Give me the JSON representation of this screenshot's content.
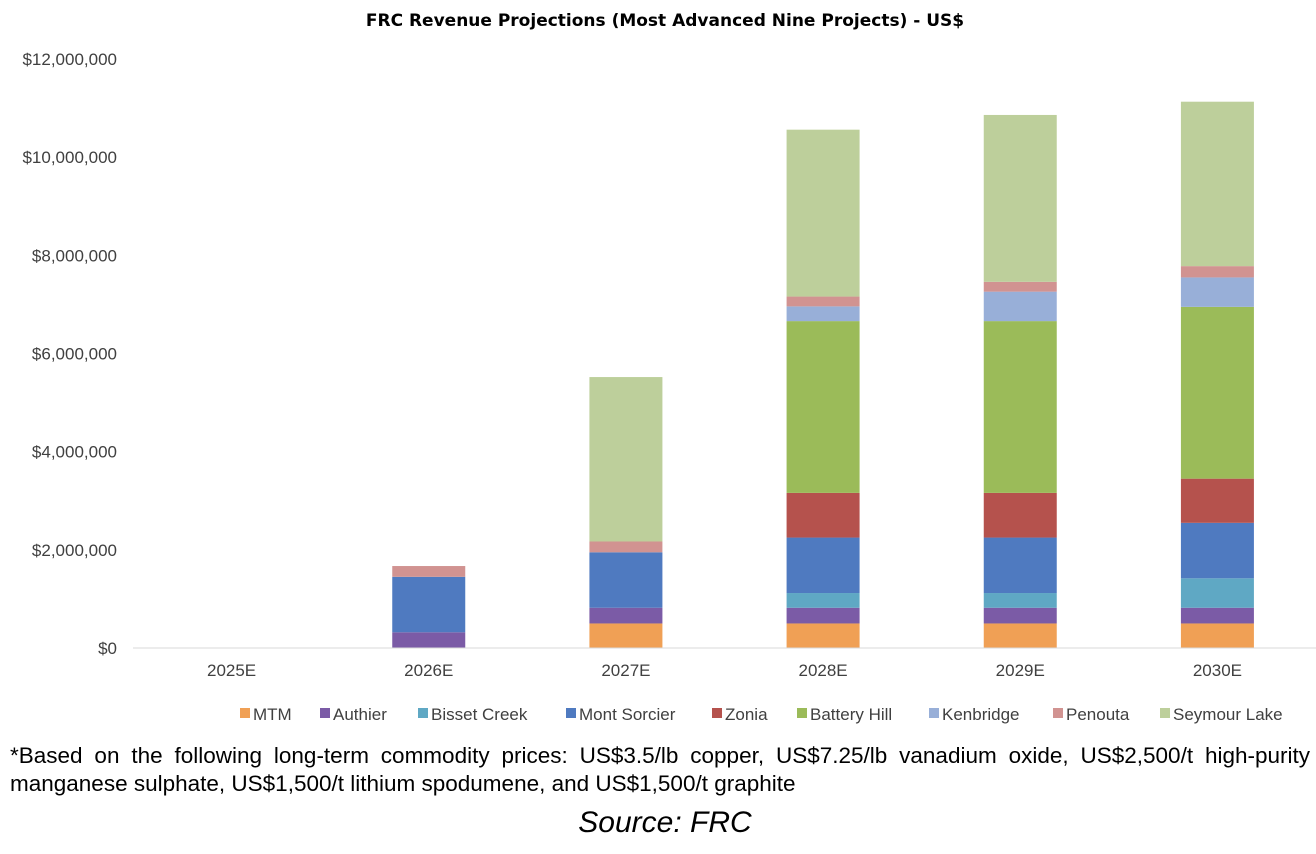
{
  "chart_data": {
    "type": "bar",
    "stacked": true,
    "title": "FRC Revenue Projections (Most Advanced Nine Projects) - US$",
    "xlabel": "",
    "ylabel": "",
    "categories": [
      "2025E",
      "2026E",
      "2027E",
      "2028E",
      "2029E",
      "2030E"
    ],
    "ylim": [
      0,
      12000000
    ],
    "y_ticks": [
      0,
      2000000,
      4000000,
      6000000,
      8000000,
      10000000,
      12000000
    ],
    "y_tick_labels": [
      "$0",
      "$2,000,000",
      "$4,000,000",
      "$6,000,000",
      "$8,000,000",
      "$10,000,000",
      "$12,000,000"
    ],
    "grid": false,
    "legend_position": "bottom",
    "series": [
      {
        "name": "MTM",
        "color": "#F0A055",
        "values": [
          0,
          0,
          500000,
          500000,
          500000,
          500000
        ]
      },
      {
        "name": "Authier",
        "color": "#7B5BA6",
        "values": [
          0,
          320000,
          320000,
          320000,
          320000,
          320000
        ]
      },
      {
        "name": "Bisset Creek",
        "color": "#5FA8C4",
        "values": [
          0,
          0,
          0,
          300000,
          300000,
          600000
        ]
      },
      {
        "name": "Mont Sorcier",
        "color": "#4F7AC0",
        "values": [
          0,
          1130000,
          1130000,
          1130000,
          1130000,
          1130000
        ]
      },
      {
        "name": "Zonia",
        "color": "#B5524D",
        "values": [
          0,
          0,
          0,
          910000,
          910000,
          900000
        ]
      },
      {
        "name": "Battery Hill",
        "color": "#9BBB59",
        "values": [
          0,
          0,
          0,
          3500000,
          3500000,
          3500000
        ]
      },
      {
        "name": "Kenbridge",
        "color": "#98AFD8",
        "values": [
          0,
          0,
          0,
          300000,
          600000,
          600000
        ]
      },
      {
        "name": "Penouta",
        "color": "#D19391",
        "values": [
          0,
          220000,
          220000,
          200000,
          200000,
          230000
        ]
      },
      {
        "name": "Seymour Lake",
        "color": "#BDCF9B",
        "values": [
          0,
          0,
          3350000,
          3400000,
          3400000,
          3350000
        ]
      }
    ]
  },
  "footnote": "*Based on the following long-term commodity prices: US$3.5/lb copper, US$7.25/lb vanadium oxide, US$2,500/t high-purity manganese sulphate, US$1,500/t lithium spodumene, and US$1,500/t graphite",
  "source": "Source: FRC"
}
